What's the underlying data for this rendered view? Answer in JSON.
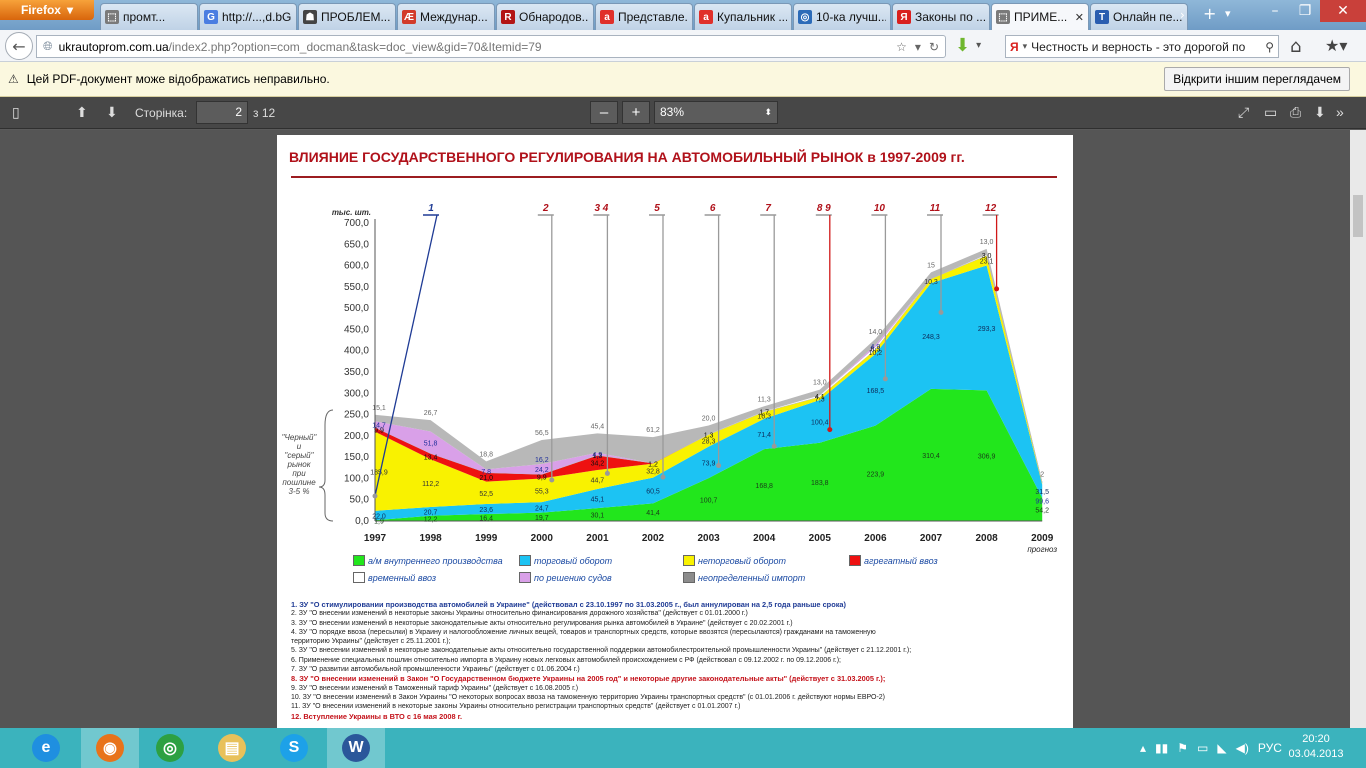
{
  "browser": {
    "app_button": "Firefox",
    "tabs": [
      {
        "label": "промт...",
        "icon": "page-icon",
        "color": "#7a7a7a",
        "glyph": "⬚"
      },
      {
        "label": "http://...,d.bGE",
        "icon": "google-icon",
        "color": "#4a7de1",
        "glyph": "G"
      },
      {
        "label": "ПРОБЛЕМ...",
        "icon": "mask-icon",
        "color": "#444444",
        "glyph": "☗"
      },
      {
        "label": "Междунар...",
        "icon": "ae-icon",
        "color": "#d23b2a",
        "glyph": "Æ"
      },
      {
        "label": "Обнародов...",
        "icon": "r-icon",
        "color": "#b31515",
        "glyph": "R"
      },
      {
        "label": "Представле...",
        "icon": "a-icon",
        "color": "#e0302a",
        "glyph": "a"
      },
      {
        "label": "Купальник ...",
        "icon": "a-icon",
        "color": "#e0302a",
        "glyph": "a"
      },
      {
        "label": "10-ка лучш...",
        "icon": "globe-icon",
        "color": "#2c6bb8",
        "glyph": "◎"
      },
      {
        "label": "Законы по ...",
        "icon": "yandex-icon",
        "color": "#d9201e",
        "glyph": "Я"
      },
      {
        "label": "ПРИМЕ...",
        "icon": "page-icon",
        "color": "#7a7a7a",
        "glyph": "⬚",
        "active": true
      },
      {
        "label": "Онлайн пе...",
        "icon": "translate-icon",
        "color": "#2a5db0",
        "glyph": "T"
      }
    ],
    "url_domain": "ukrautoprom.com.ua",
    "url_path": "/index2.php?option=com_docman&task=doc_view&gid=70&Itemid=79",
    "search_text": "Честность и верность - это дорогой по",
    "notification": "Цей PDF-документ може відображатись неправильно.",
    "notification_button": "Відкрити іншим переглядачем"
  },
  "pdf_toolbar": {
    "page_label": "Сторінка:",
    "page_value": "2",
    "page_total": "з 12",
    "zoom": "83%"
  },
  "document": {
    "title": "ВЛИЯНИЕ ГОСУДАРСТВЕННОГО РЕГУЛИРОВАНИЯ НА АВТОМОБИЛЬНЫЙ РЫНОК в 1997-2009 гг.",
    "unit": "тыс. шт.",
    "side_note": [
      "\"Черный\"",
      "и",
      "\"серый\"",
      "рынок",
      "при",
      "пошлине",
      "3-5 %"
    ],
    "forecast_label": "прогноз",
    "legend": [
      {
        "label": "а/м внутреннего производства",
        "color": "#22e61c"
      },
      {
        "label": "торговый оборот",
        "color": "#1cc3f3"
      },
      {
        "label": "неторговый оборот",
        "color": "#f9f200"
      },
      {
        "label": "агрегатный ввоз",
        "color": "#ee1111"
      },
      {
        "label": "временный ввоз",
        "color": "#ffffff"
      },
      {
        "label": "по решению судов",
        "color": "#d9a0e8"
      },
      {
        "label": "неопределенный импорт",
        "color": "#8c8c8c"
      }
    ],
    "notes": [
      {
        "text": "1. ЗУ \"О стимулировании производства автомобилей в Украине\" (действовал с 23.10.1997 по 31.03.2005 г., был аннулирован на 2,5 года раньше срока)",
        "style": "b"
      },
      {
        "text": "2. ЗУ \"О внесении изменений в некоторые законы Украины относительно финансирования дорожного хозяйства\" (действует с 01.01.2000 г.)",
        "style": ""
      },
      {
        "text": "3. ЗУ \"О внесении изменений в некоторые законодательные акты относительно регулирования рынка автомобилей в Украине\" (действует с 20.02.2001 г.)",
        "style": ""
      },
      {
        "text": "4. ЗУ \"О порядке ввоза (пересылки) в Украину и налогообложение личных вещей, товаров и транспортных средств, которые ввозятся (пересылаются) гражданами на таможенную",
        "style": ""
      },
      {
        "text": "    территорию Украины\" (действует с 25.11.2001 г.);",
        "style": ""
      },
      {
        "text": "5. ЗУ \"О внесении изменений в некоторые законодательные акты относительно государственной поддержки автомобилестроительной промышленности Украины\" (действует с 21.12.2001 г.);",
        "style": ""
      },
      {
        "text": "6. Применение специальных пошлин относительно импорта в Украину новых легковых автомобилей происхождением с РФ (действовал с 09.12.2002 г. по 09.12.2006 г.);",
        "style": ""
      },
      {
        "text": "7. ЗУ \"О развитии автомобильной промышленности Украины\" (действует с 01.06.2004 г.)",
        "style": ""
      },
      {
        "text": "8. ЗУ \"О внесении изменений в Закон \"О Государственном бюджете Украины на 2005 год\" и некоторые другие законодательные акты\" (действует с 31.03.2005 г.);",
        "style": "r"
      },
      {
        "text": "9. ЗУ \"О внесении изменений в Таможенный тариф Украины\" (действует с 16.08.2005 г.)",
        "style": ""
      },
      {
        "text": "10. ЗУ \"О внесении изменений в Закон Украины \"О некоторых вопросах ввоза на таможенную территорию Украины транспортных средств\" (с 01.01.2006 г. действуют нормы ЕВРО-2)",
        "style": ""
      },
      {
        "text": "11. ЗУ \"О внесении изменений в некоторые законы Украины относительно регистрации транспортных средств\" (действует с 01.01.2007 г.)",
        "style": ""
      },
      {
        "text": "12. Вступление Украины в ВТО с 16 мая 2008 г.",
        "style": "r"
      }
    ]
  },
  "chart_data": {
    "type": "area",
    "stacked": true,
    "title": "ВЛИЯНИЕ ГОСУДАРСТВЕННОГО РЕГУЛИРОВАНИЯ НА АВТОМОБИЛЬНЫЙ РЫНОК в 1997-2009 гг.",
    "ylabel": "тыс. шт.",
    "xlabel": "",
    "ylim": [
      0,
      700
    ],
    "yticks": [
      "0,0",
      "50,0",
      "100,0",
      "150,0",
      "200,0",
      "250,0",
      "300,0",
      "350,0",
      "400,0",
      "450,0",
      "500,0",
      "550,0",
      "600,0",
      "650,0",
      "700,0"
    ],
    "categories": [
      "1997",
      "1998",
      "1999",
      "2000",
      "2001",
      "2002",
      "2003",
      "2004",
      "2005",
      "2006",
      "2007",
      "2008",
      "2009"
    ],
    "series": [
      {
        "name": "а/м внутреннего производства",
        "color": "#22e61c",
        "values": [
          1.9,
          12.2,
          16.4,
          19.7,
          30.1,
          41.4,
          100.7,
          168.8,
          183.8,
          223.9,
          310.4,
          306.9,
          54.2
        ],
        "labels": [
          "1,9",
          "12,2",
          "16,4",
          "19,7",
          "30,1",
          "41,4",
          "100,7",
          "168,8",
          "183,8",
          "223,9",
          "310,4",
          "306,9",
          "54,2"
        ]
      },
      {
        "name": "торговый оборот",
        "color": "#1cc3f3",
        "values": [
          22.0,
          20.7,
          23.6,
          24.7,
          45.1,
          60.5,
          73.9,
          71.4,
          100.4,
          168.5,
          248.3,
          293.3,
          31.5
        ],
        "labels": [
          "22,0",
          "20,7",
          "23,6",
          "24,7",
          "45,1",
          "60,5",
          "73,9",
          "71,4",
          "100,4",
          "168,5",
          "248,3",
          "293,3",
          "31,5"
        ]
      },
      {
        "name": "неторговый оборот",
        "color": "#f9f200",
        "values": [
          185.9,
          112.2,
          52.5,
          55.3,
          44.7,
          32.8,
          28.3,
          16.3,
          7.3,
          10.2,
          10.3,
          23.1,
          4.5
        ],
        "labels": [
          "185,9",
          "112,2",
          "52,5",
          "55,3",
          "44,7",
          "32,8",
          "28,3",
          "16,3",
          "7,3",
          "10,2",
          "10,3",
          "23,1",
          ""
        ]
      },
      {
        "name": "агрегатный ввоз",
        "color": "#ee1111",
        "values": [
          9.9,
          13.4,
          21.0,
          9.9,
          34.2,
          1.2,
          0,
          0,
          0,
          0,
          0,
          0,
          0
        ],
        "labels": [
          "9,9",
          "13,4",
          "21,0",
          "9,9",
          "34,2",
          "1,2",
          "",
          "",
          "",
          "",
          "",
          "",
          ""
        ]
      },
      {
        "name": "временный ввоз",
        "color": "#ffffff",
        "values": [
          0,
          0,
          0,
          0,
          1.3,
          0,
          1.3,
          1.7,
          4.1,
          6.3,
          0,
          3.0,
          0
        ],
        "labels": [
          "",
          "",
          "",
          "",
          "1,3",
          "",
          "1,3",
          "1,7",
          "4,1",
          "6,3",
          "",
          "3,0",
          ""
        ]
      },
      {
        "name": "по решению судов",
        "color": "#d9a0e8",
        "values": [
          14.7,
          51.8,
          7.8,
          24.2,
          4.9,
          0,
          0,
          0,
          0,
          4.9,
          0,
          0,
          0
        ],
        "labels": [
          "14,7",
          "51,8",
          "7,8",
          "24,2",
          "4,9",
          "",
          "",
          "",
          "",
          "4,9",
          "",
          "",
          ""
        ]
      },
      {
        "name": "неопределенный импорт",
        "color": "#b8b8b8",
        "values": [
          15.1,
          26.7,
          18.8,
          56.5,
          45.4,
          61.2,
          20.0,
          11.3,
          13.0,
          14.0,
          15.0,
          13.0,
          2.0
        ],
        "labels": [
          "15,1",
          "26,7",
          "18,8",
          "56,5",
          "45,4",
          "61,2",
          "20,0",
          "11,3",
          "13,0",
          "14,0",
          "15",
          "13,0",
          "2"
        ]
      }
    ],
    "extra_labels": [
      {
        "text": "16,2",
        "year": "2000"
      },
      {
        "text": "99,6",
        "year": "2009"
      }
    ],
    "law_markers": [
      {
        "num": "1",
        "year": "1997",
        "color": "#1f3b95"
      },
      {
        "num": "2",
        "year": "2000",
        "color": "#b0111a"
      },
      {
        "num": "3 4",
        "year": "2001",
        "color": "#b0111a"
      },
      {
        "num": "5",
        "year": "2002",
        "color": "#b0111a"
      },
      {
        "num": "6",
        "year": "2003",
        "color": "#b0111a"
      },
      {
        "num": "7",
        "year": "2004",
        "color": "#b0111a"
      },
      {
        "num": "8 9",
        "year": "2005",
        "color": "#b0111a"
      },
      {
        "num": "10",
        "year": "2006",
        "color": "#b0111a"
      },
      {
        "num": "11",
        "year": "2007",
        "color": "#b0111a"
      },
      {
        "num": "12",
        "year": "2008",
        "color": "#b0111a"
      }
    ],
    "grid": false,
    "legend_position": "bottom"
  },
  "taskbar": {
    "apps": [
      {
        "name": "ie-icon",
        "glyph": "e",
        "color": "#1f8fe0"
      },
      {
        "name": "firefox-icon",
        "glyph": "◉",
        "color": "#e8731a",
        "active": true
      },
      {
        "name": "chrome-icon",
        "glyph": "◎",
        "color": "#2da042"
      },
      {
        "name": "explorer-icon",
        "glyph": "▤",
        "color": "#e8c15a"
      },
      {
        "name": "skype-icon",
        "glyph": "S",
        "color": "#1da1e8"
      },
      {
        "name": "word-icon",
        "glyph": "W",
        "color": "#2b579a",
        "active": true
      }
    ],
    "language": "РУС",
    "time": "20:20",
    "date": "03.04.2013"
  }
}
